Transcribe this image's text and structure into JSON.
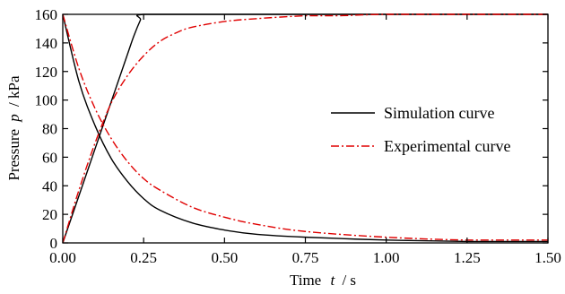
{
  "chart_data": {
    "type": "line",
    "xlabel": "Time",
    "xlabel_symbol": "t",
    "xlabel_unit": "/ s",
    "ylabel": "Pressure",
    "ylabel_symbol": "p",
    "ylabel_unit": "/ kPa",
    "xlim": [
      0,
      1.5
    ],
    "ylim": [
      0,
      160
    ],
    "x_ticks": [
      "0.00",
      "0.25",
      "0.50",
      "0.75",
      "1.00",
      "1.25",
      "1.50"
    ],
    "y_ticks": [
      "0",
      "20",
      "40",
      "60",
      "80",
      "100",
      "120",
      "140",
      "160"
    ],
    "grid": false,
    "legend_position": "right",
    "legend": [
      {
        "label": "Simulation curve",
        "color": "#000000",
        "style": "solid"
      },
      {
        "label": "Experimental curve",
        "color": "#e00000",
        "style": "dash-dot"
      }
    ],
    "series": [
      {
        "name": "Simulation curve",
        "color": "#000000",
        "style": "solid",
        "x": [
          0,
          0.05,
          0.1,
          0.15,
          0.2,
          0.22,
          0.24,
          0.25,
          0.5,
          0.75,
          1.0,
          1.25,
          1.5
        ],
        "y": [
          0,
          33,
          66,
          99,
          132,
          145,
          156,
          160,
          160,
          160,
          160,
          160,
          160
        ]
      },
      {
        "name": "Simulation curve",
        "color": "#000000",
        "style": "solid",
        "x": [
          0,
          0.05,
          0.1,
          0.15,
          0.2,
          0.25,
          0.3,
          0.4,
          0.5,
          0.6,
          0.75,
          1.0,
          1.25,
          1.5
        ],
        "y": [
          160,
          113,
          82,
          59,
          43,
          31,
          23,
          14,
          9,
          6,
          4,
          2,
          1,
          1
        ]
      },
      {
        "name": "Experimental curve",
        "color": "#e00000",
        "style": "dash-dot",
        "x": [
          0,
          0.05,
          0.1,
          0.15,
          0.2,
          0.25,
          0.3,
          0.35,
          0.4,
          0.5,
          0.6,
          0.75,
          0.85,
          1.0,
          1.25,
          1.5
        ],
        "y": [
          0,
          37,
          70,
          98,
          117,
          131,
          141,
          147,
          151,
          155,
          157,
          159,
          159,
          160,
          160,
          160
        ]
      },
      {
        "name": "Experimental curve",
        "color": "#e00000",
        "style": "dash-dot",
        "x": [
          0,
          0.05,
          0.1,
          0.15,
          0.2,
          0.25,
          0.3,
          0.4,
          0.5,
          0.6,
          0.75,
          1.0,
          1.25,
          1.5
        ],
        "y": [
          160,
          122,
          94,
          73,
          57,
          45,
          37,
          25,
          18,
          13,
          8,
          4,
          2,
          2
        ]
      }
    ]
  }
}
